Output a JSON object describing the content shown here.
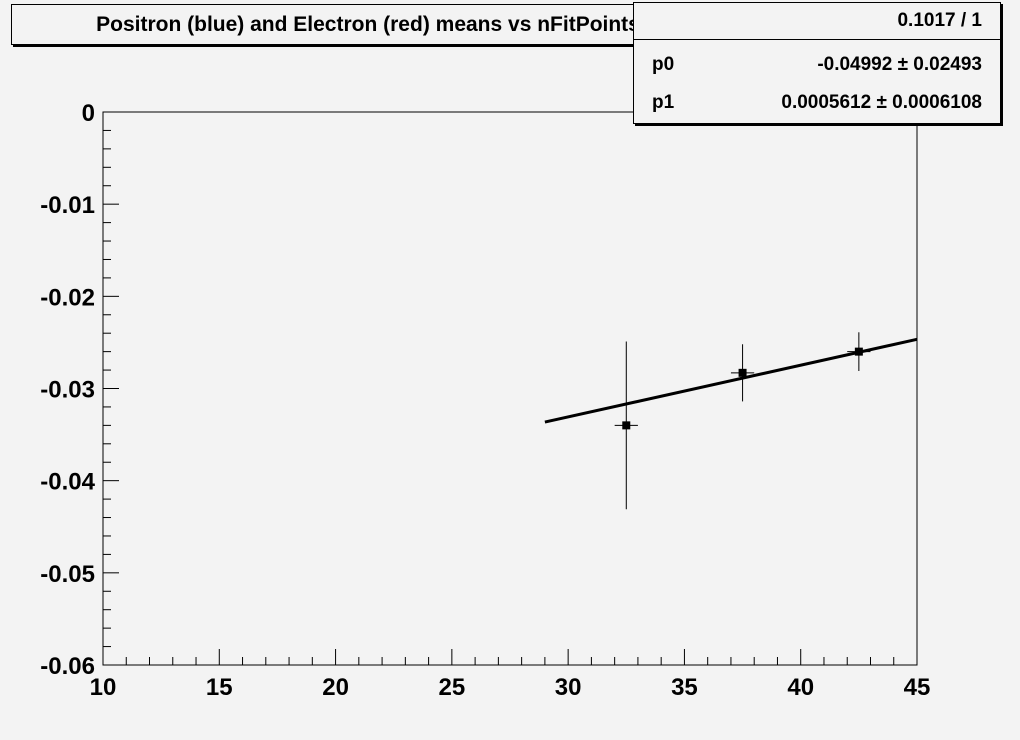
{
  "chart_data": {
    "type": "scatter",
    "title": "Positron (blue) and Electron (red) means vs nFitPoints",
    "xlabel": "",
    "ylabel": "",
    "xlim": [
      10,
      45
    ],
    "ylim": [
      -0.06,
      0
    ],
    "grid": false,
    "x_ticks": [
      "10",
      "15",
      "20",
      "25",
      "30",
      "35",
      "40",
      "45"
    ],
    "y_ticks": [
      "0",
      "-0.01",
      "-0.02",
      "-0.03",
      "-0.04",
      "-0.05",
      "-0.06"
    ],
    "points": [
      {
        "x": 32.5,
        "y": -0.034,
        "xerr": 0.5,
        "yerr": 0.0091
      },
      {
        "x": 37.5,
        "y": -0.0283,
        "xerr": 0.5,
        "yerr": 0.0031
      },
      {
        "x": 42.5,
        "y": -0.026,
        "xerr": 0.5,
        "yerr": 0.0021
      }
    ],
    "fit": {
      "type": "pol1",
      "p0": -0.04992,
      "p1": 0.0005612,
      "xrange": [
        29,
        45
      ]
    },
    "colors": {
      "background": "#f3f3f3",
      "marker": "#000000",
      "fit_line": "#000000"
    }
  },
  "stats": {
    "chi2_ndf": "0.1017 / 1",
    "rows": [
      {
        "label": "p0",
        "value": "-0.04992 ± 0.02493"
      },
      {
        "label": "p1",
        "value": "0.0005612 ± 0.0006108"
      }
    ]
  }
}
